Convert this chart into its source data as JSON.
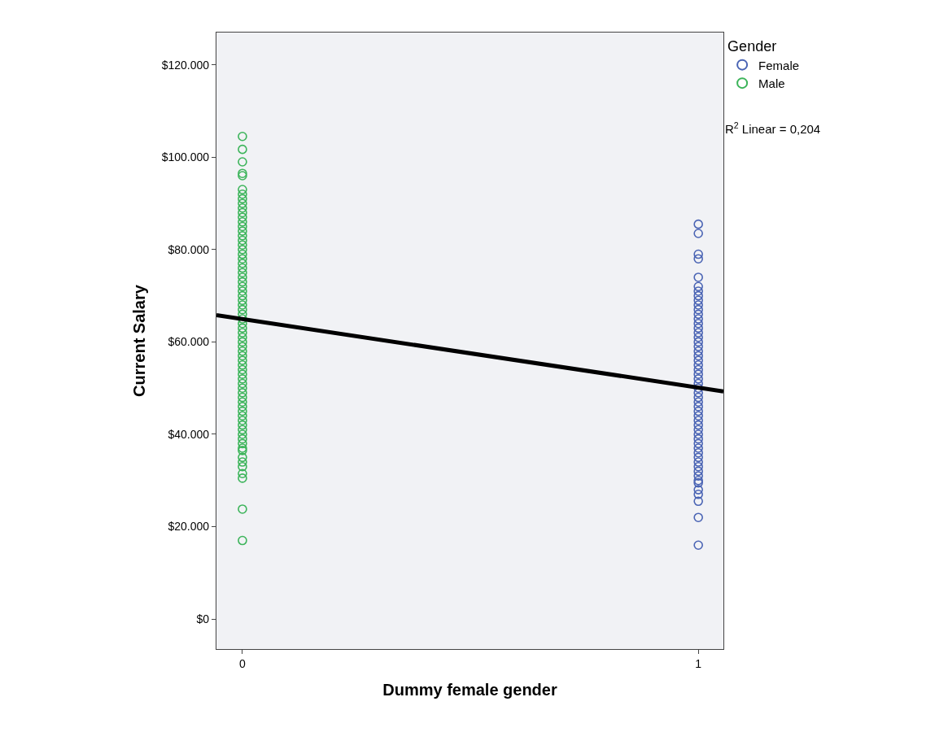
{
  "chart_data": {
    "type": "scatter",
    "xlabel": "Dummy female gender",
    "ylabel": "Current Salary",
    "legend_title": "Gender",
    "legend": "top right",
    "grid": false,
    "xlim": [
      -0.057,
      1.055
    ],
    "xticks": [
      0,
      1
    ],
    "ylim": [
      -6500,
      127000
    ],
    "yticks": [
      {
        "value": 0,
        "label": "$0"
      },
      {
        "value": 20000,
        "label": "$20.000"
      },
      {
        "value": 40000,
        "label": "$40.000"
      },
      {
        "value": 60000,
        "label": "$60.000"
      },
      {
        "value": 80000,
        "label": "$80.000"
      },
      {
        "value": 100000,
        "label": "$100.000"
      },
      {
        "value": 120000,
        "label": "$120.000"
      }
    ],
    "annotations": [
      "R$^{2}$ Linear = 0,204"
    ],
    "series": [
      {
        "name": "Female",
        "color": "#4a64b4",
        "marker": "circle",
        "x": [
          1,
          1,
          1,
          1,
          1,
          1,
          1,
          1,
          1,
          1,
          1,
          1,
          1,
          1,
          1,
          1,
          1,
          1,
          1,
          1,
          1,
          1,
          1,
          1,
          1,
          1,
          1,
          1,
          1,
          1,
          1,
          1,
          1,
          1,
          1,
          1,
          1,
          1,
          1,
          1,
          1,
          1,
          1,
          1,
          1,
          1,
          1,
          1,
          1,
          1,
          1,
          1,
          1,
          1
        ],
        "values": [
          85500,
          83500,
          79000,
          78000,
          74000,
          72000,
          71000,
          70000,
          69000,
          68000,
          67000,
          66000,
          65000,
          64000,
          63000,
          62000,
          61000,
          60000,
          59000,
          58000,
          57000,
          56000,
          55000,
          54000,
          53000,
          52000,
          51000,
          50000,
          49000,
          48000,
          47000,
          46000,
          45000,
          44000,
          43000,
          42000,
          41000,
          40000,
          39000,
          38000,
          37000,
          36000,
          35000,
          34000,
          33000,
          32000,
          31000,
          29500,
          28000,
          27000,
          25500,
          22000,
          16000,
          30000
        ]
      },
      {
        "name": "Male",
        "color": "#3cb45a",
        "marker": "circle",
        "x": [
          0,
          0,
          0,
          0,
          0,
          0,
          0,
          0,
          0,
          0,
          0,
          0,
          0,
          0,
          0,
          0,
          0,
          0,
          0,
          0,
          0,
          0,
          0,
          0,
          0,
          0,
          0,
          0,
          0,
          0,
          0,
          0,
          0,
          0,
          0,
          0,
          0,
          0,
          0,
          0,
          0,
          0,
          0,
          0,
          0,
          0,
          0,
          0,
          0,
          0,
          0,
          0,
          0,
          0,
          0,
          0,
          0,
          0,
          0,
          0,
          0,
          0,
          0,
          0,
          0,
          0,
          0,
          0,
          0,
          0
        ],
        "values": [
          104500,
          101700,
          99000,
          96500,
          96000,
          93000,
          92000,
          91000,
          90000,
          89000,
          88000,
          87000,
          86000,
          85000,
          84000,
          83000,
          82000,
          81000,
          80000,
          79000,
          78000,
          77000,
          76000,
          75000,
          74000,
          73000,
          72000,
          71000,
          70000,
          69000,
          68000,
          67000,
          66000,
          65000,
          64000,
          63000,
          62000,
          61000,
          60000,
          59000,
          58000,
          57000,
          56000,
          55000,
          54000,
          53000,
          52000,
          51000,
          50000,
          49000,
          48000,
          47000,
          46000,
          45000,
          44000,
          43000,
          42000,
          41000,
          40000,
          39000,
          38000,
          36500,
          35000,
          34000,
          33000,
          31500,
          30500,
          23800,
          17000,
          37000
        ]
      },
      {
        "type": "line",
        "marker": "none",
        "color": "#000000",
        "x": [
          -0.057,
          1.055
        ],
        "values": [
          65800,
          49300
        ]
      }
    ]
  }
}
